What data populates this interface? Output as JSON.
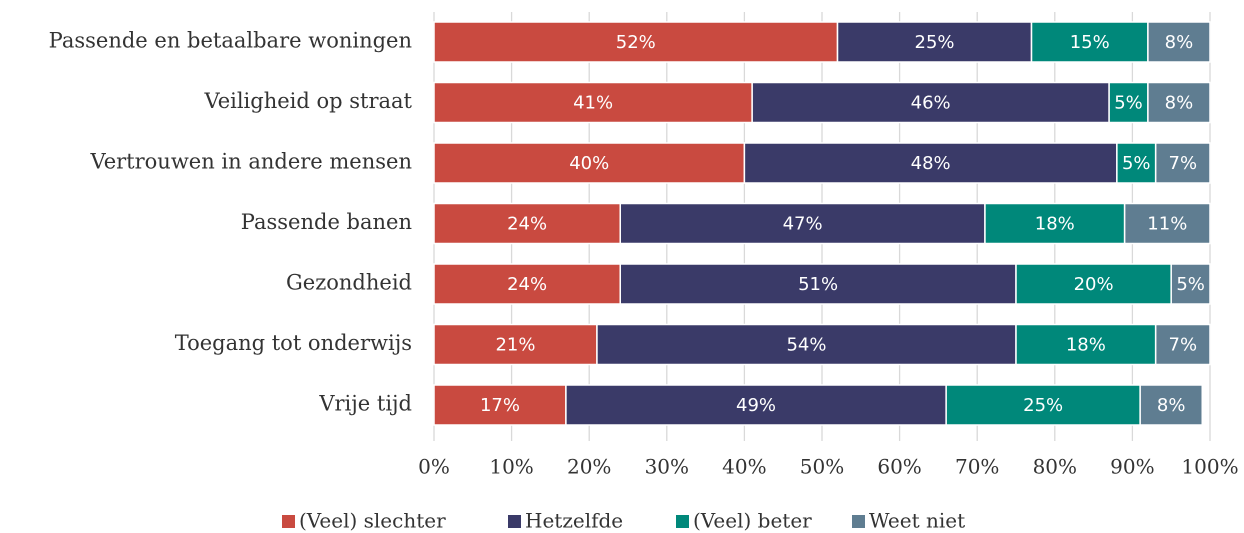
{
  "chart_data": {
    "type": "stacked_barh",
    "categories": [
      "Passende en betaalbare woningen",
      "Veiligheid op straat",
      "Vertrouwen in andere mensen",
      "Passende banen",
      "Gezondheid",
      "Toegang tot onderwijs",
      "Vrije tijd"
    ],
    "series": [
      {
        "name": "(Veel) slechter",
        "color": "#c94a40",
        "values": [
          52,
          41,
          40,
          24,
          24,
          21,
          17
        ],
        "value_labels": [
          "52%",
          "41%",
          "40%",
          "24%",
          "24%",
          "21%",
          "17%"
        ]
      },
      {
        "name": "Hetzelfde",
        "color": "#3a3a68",
        "values": [
          25,
          46,
          48,
          47,
          51,
          54,
          49
        ],
        "value_labels": [
          "25%",
          "46%",
          "48%",
          "47%",
          "51%",
          "54%",
          "49%"
        ]
      },
      {
        "name": "(Veel) beter",
        "color": "#00887a",
        "values": [
          15,
          5,
          5,
          18,
          20,
          18,
          25
        ],
        "value_labels": [
          "15%",
          "5%",
          "5%",
          "18%",
          "20%",
          "18%",
          "25%"
        ]
      },
      {
        "name": "Weet niet",
        "color": "#5f7d91",
        "values": [
          8,
          8,
          7,
          11,
          5,
          7,
          8
        ],
        "value_labels": [
          "8%",
          "8%",
          "7%",
          "11%",
          "5%",
          "7%",
          "8%"
        ]
      }
    ],
    "xlim": [
      0,
      100
    ],
    "xticks": [
      {
        "value": 0,
        "label": "0%"
      },
      {
        "value": 10,
        "label": "10%"
      },
      {
        "value": 20,
        "label": "20%"
      },
      {
        "value": 30,
        "label": "30%"
      },
      {
        "value": 40,
        "label": "40%"
      },
      {
        "value": 50,
        "label": "50%"
      },
      {
        "value": 60,
        "label": "60%"
      },
      {
        "value": 70,
        "label": "70%"
      },
      {
        "value": 80,
        "label": "80%"
      },
      {
        "value": 90,
        "label": "90%"
      },
      {
        "value": 100,
        "label": "100%"
      }
    ],
    "grid": true,
    "legend": "bottom"
  }
}
